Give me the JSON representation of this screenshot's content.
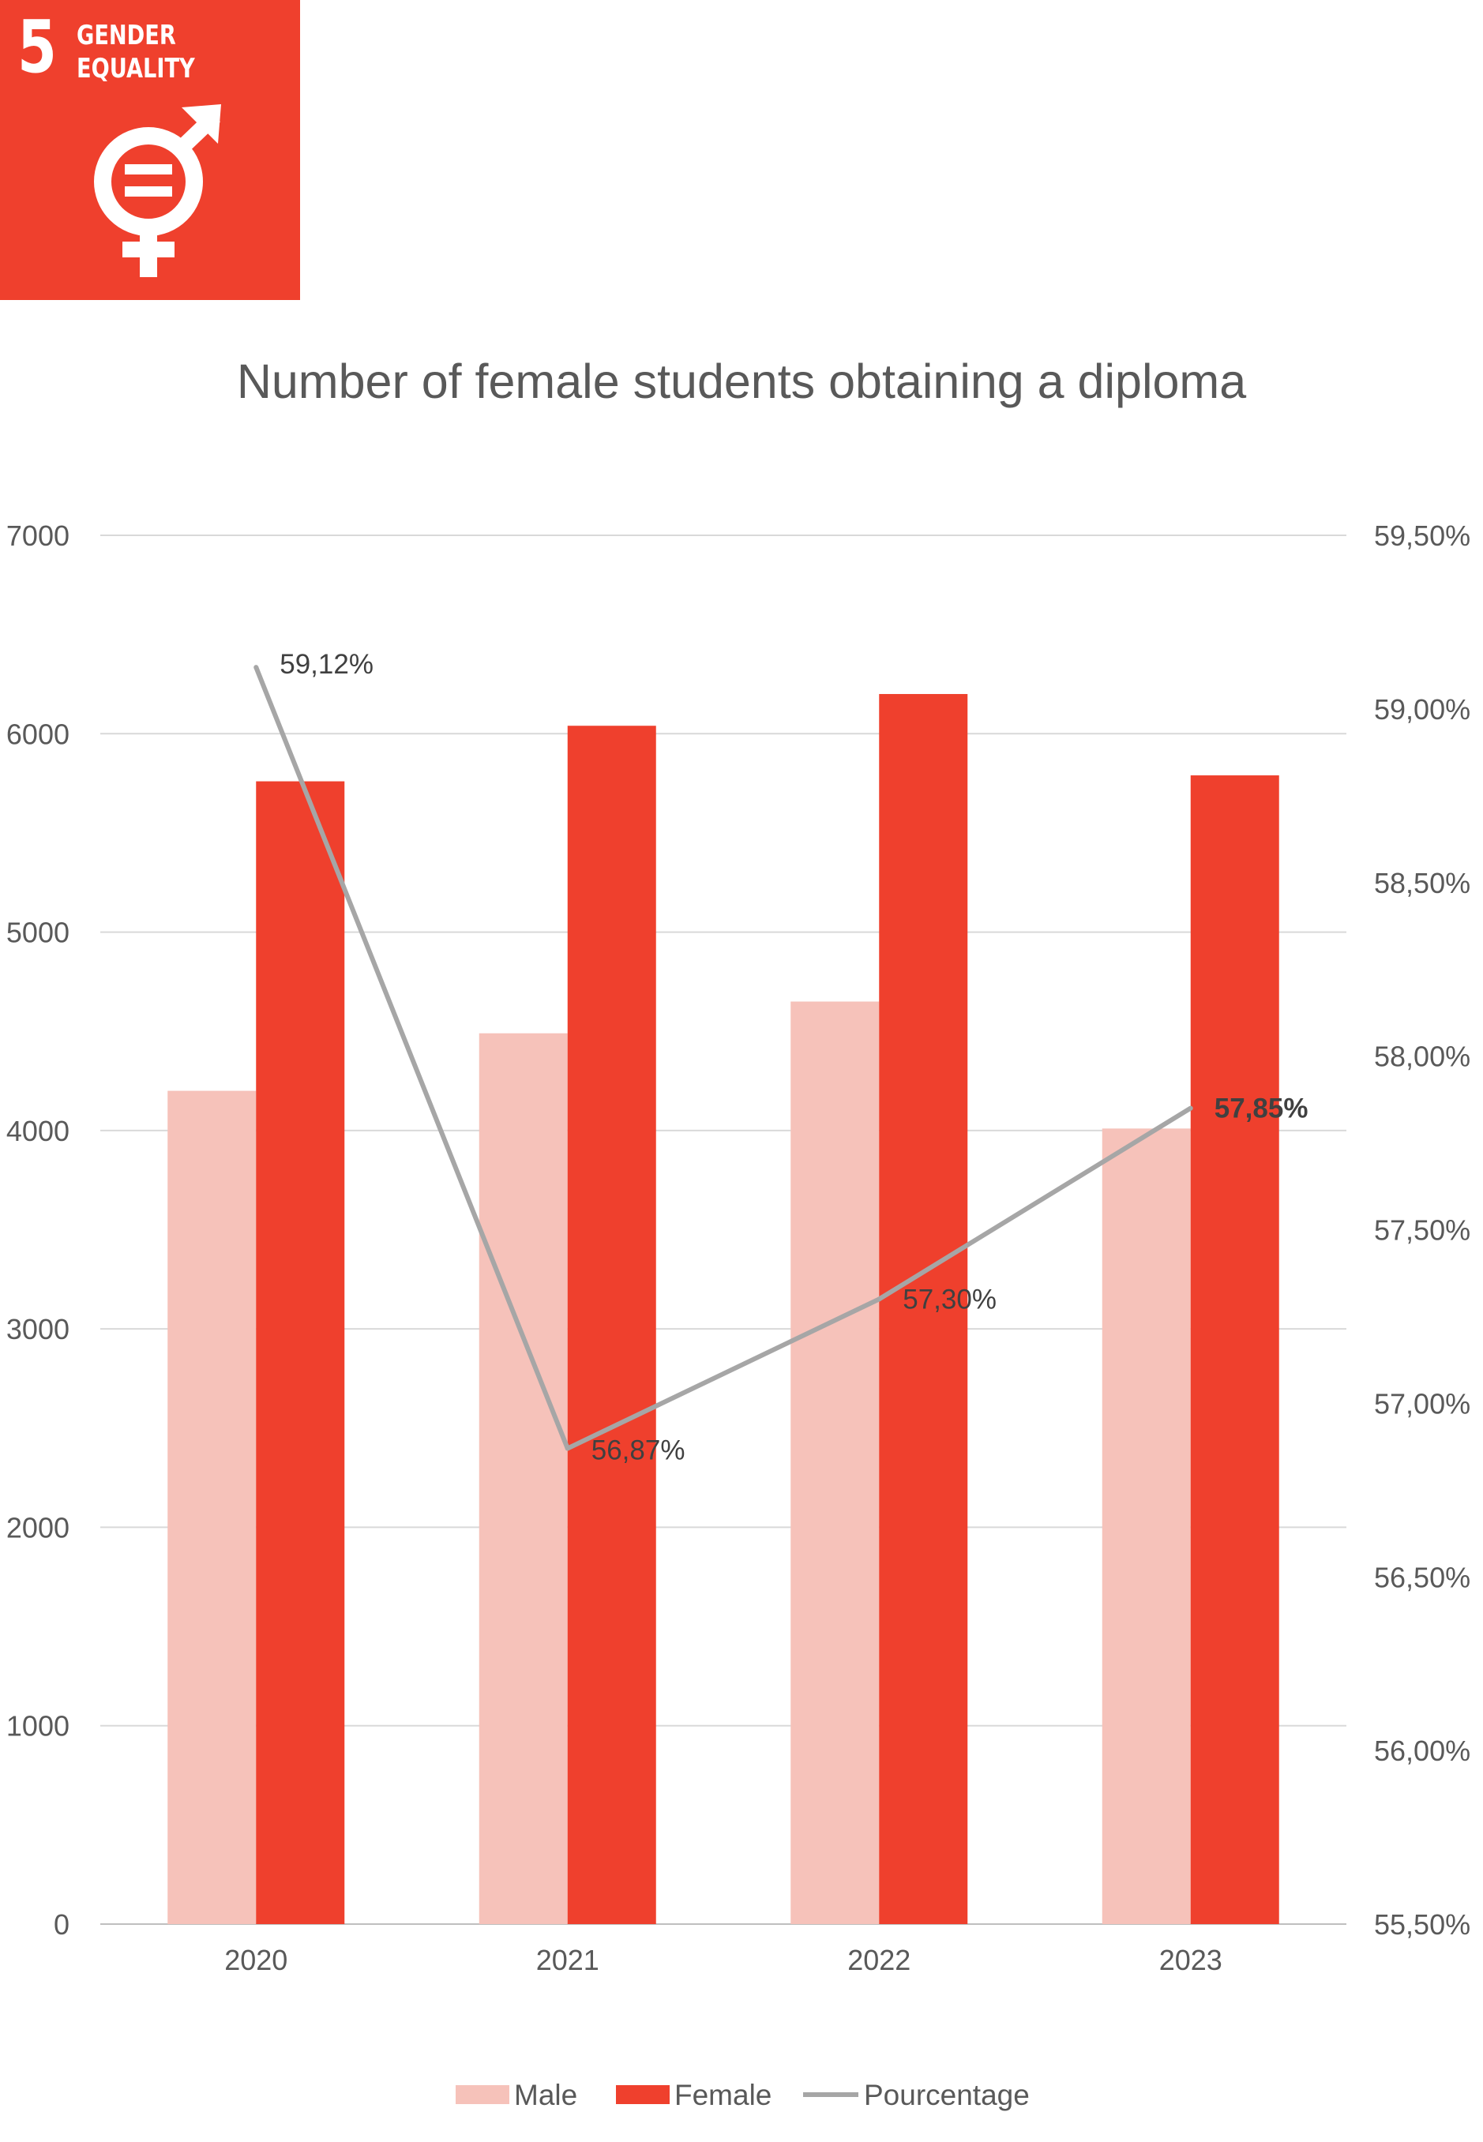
{
  "badge": {
    "number": "5",
    "line1": "GENDER",
    "line2": "EQUALITY",
    "icon": "gender-equality-icon",
    "color": "#EF402D"
  },
  "chart_data": {
    "type": "bar",
    "title": "Number of female students obtaining a diploma",
    "categories": [
      "2020",
      "2021",
      "2022",
      "2023"
    ],
    "series": [
      {
        "name": "Male",
        "type": "bar",
        "axis": "left",
        "color": "#F6C2BA",
        "values": [
          4200,
          4490,
          4650,
          4010
        ]
      },
      {
        "name": "Female",
        "type": "bar",
        "axis": "left",
        "color": "#EF402D",
        "values": [
          5760,
          6040,
          6200,
          5790
        ]
      },
      {
        "name": "Pourcentage",
        "type": "line",
        "axis": "right",
        "color": "#A6A6A6",
        "values": [
          59.12,
          56.87,
          57.3,
          57.85
        ],
        "labels": [
          "59,12%",
          "56,87%",
          "57,30%",
          "57,85%"
        ],
        "highlight_last": true
      }
    ],
    "ylim": [
      0,
      7000
    ],
    "yticks": [
      "0",
      "1000",
      "2000",
      "3000",
      "4000",
      "5000",
      "6000",
      "7000"
    ],
    "y2lim": [
      55.5,
      59.5
    ],
    "y2ticks": [
      "55,50%",
      "56,00%",
      "56,50%",
      "57,00%",
      "57,50%",
      "58,00%",
      "58,50%",
      "59,00%",
      "59,50%"
    ],
    "grid": true,
    "legend": "bottom"
  }
}
